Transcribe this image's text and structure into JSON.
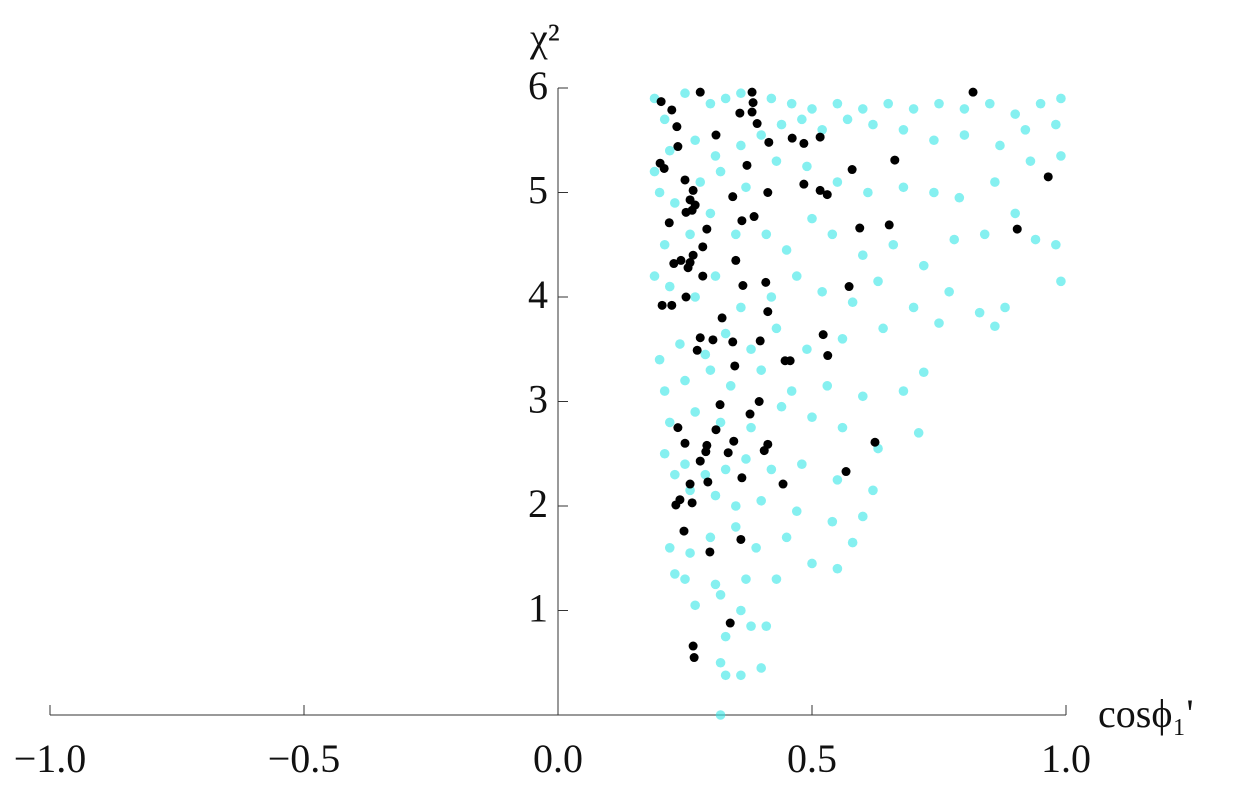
{
  "chart_data": {
    "type": "scatter",
    "x_label": "cosϕ₁'",
    "y_label": "χ²",
    "xlim": [
      -1,
      1
    ],
    "ylim": [
      0,
      6
    ],
    "xticks": [
      {
        "value": -1,
        "label": "−1.0"
      },
      {
        "value": -0.5,
        "label": "−0.5"
      },
      {
        "value": 0,
        "label": "0.0"
      },
      {
        "value": 0.5,
        "label": "0.5"
      },
      {
        "value": 1,
        "label": "1.0"
      }
    ],
    "yticks": [
      1,
      2,
      3,
      4,
      5,
      6
    ],
    "series": [
      {
        "color": "#33e6e6",
        "x": [
          0.19,
          0.21,
          0.25,
          0.3,
          0.33,
          0.36,
          0.42,
          0.46,
          0.5,
          0.55,
          0.6,
          0.65,
          0.7,
          0.75,
          0.8,
          0.85,
          0.9,
          0.95,
          0.99,
          0.98,
          0.92,
          0.87,
          0.8,
          0.74,
          0.68,
          0.62,
          0.57,
          0.52,
          0.48,
          0.44,
          0.4,
          0.36,
          0.31,
          0.27,
          0.22,
          0.19,
          0.2,
          0.23,
          0.28,
          0.32,
          0.37,
          0.43,
          0.49,
          0.55,
          0.61,
          0.68,
          0.74,
          0.79,
          0.86,
          0.93,
          0.99,
          0.98,
          0.94,
          0.9,
          0.84,
          0.78,
          0.72,
          0.66,
          0.6,
          0.54,
          0.5,
          0.45,
          0.41,
          0.35,
          0.3,
          0.26,
          0.21,
          0.19,
          0.22,
          0.27,
          0.31,
          0.36,
          0.42,
          0.47,
          0.52,
          0.58,
          0.63,
          0.7,
          0.77,
          0.83,
          0.88,
          0.99,
          0.86,
          0.75,
          0.64,
          0.56,
          0.49,
          0.43,
          0.38,
          0.33,
          0.29,
          0.24,
          0.2,
          0.21,
          0.25,
          0.3,
          0.34,
          0.4,
          0.46,
          0.53,
          0.6,
          0.68,
          0.72,
          0.71,
          0.63,
          0.56,
          0.5,
          0.44,
          0.38,
          0.32,
          0.27,
          0.22,
          0.21,
          0.25,
          0.29,
          0.33,
          0.37,
          0.42,
          0.48,
          0.55,
          0.62,
          0.6,
          0.54,
          0.47,
          0.4,
          0.35,
          0.31,
          0.26,
          0.23,
          0.22,
          0.26,
          0.3,
          0.35,
          0.39,
          0.45,
          0.5,
          0.55,
          0.58,
          0.43,
          0.37,
          0.31,
          0.25,
          0.23,
          0.27,
          0.32,
          0.36,
          0.41,
          0.38,
          0.33,
          0.32,
          0.33,
          0.36,
          0.4,
          0.32
        ],
        "values": [
          5.9,
          5.7,
          5.95,
          5.85,
          5.9,
          5.95,
          5.9,
          5.85,
          5.8,
          5.85,
          5.8,
          5.85,
          5.8,
          5.85,
          5.8,
          5.85,
          5.75,
          5.85,
          5.9,
          5.65,
          5.6,
          5.45,
          5.55,
          5.5,
          5.6,
          5.65,
          5.7,
          5.6,
          5.7,
          5.65,
          5.55,
          5.45,
          5.35,
          5.5,
          5.4,
          5.2,
          5.0,
          4.9,
          5.1,
          5.2,
          5.05,
          5.3,
          5.25,
          5.1,
          5.0,
          5.05,
          5.0,
          4.95,
          5.1,
          5.3,
          5.35,
          4.5,
          4.55,
          4.8,
          4.6,
          4.55,
          4.3,
          4.5,
          4.4,
          4.6,
          4.75,
          4.45,
          4.6,
          4.6,
          4.8,
          4.6,
          4.5,
          4.2,
          4.1,
          4.0,
          4.2,
          3.9,
          4.0,
          4.2,
          4.05,
          3.95,
          4.15,
          3.9,
          4.05,
          3.85,
          3.9,
          4.15,
          3.72,
          3.75,
          3.7,
          3.6,
          3.5,
          3.7,
          3.5,
          3.65,
          3.45,
          3.55,
          3.4,
          3.1,
          3.2,
          3.3,
          3.15,
          3.3,
          3.1,
          3.15,
          3.05,
          3.1,
          3.28,
          2.7,
          2.55,
          2.75,
          2.85,
          2.95,
          2.75,
          2.8,
          2.9,
          2.8,
          2.5,
          2.4,
          2.3,
          2.35,
          2.45,
          2.35,
          2.4,
          2.25,
          2.15,
          1.9,
          1.85,
          1.95,
          2.05,
          2.0,
          2.1,
          2.15,
          2.3,
          1.6,
          1.55,
          1.7,
          1.8,
          1.6,
          1.7,
          1.45,
          1.4,
          1.65,
          1.3,
          1.3,
          1.25,
          1.3,
          1.35,
          1.05,
          1.15,
          1.0,
          0.85,
          0.85,
          0.75,
          0.5,
          0.38,
          0.38,
          0.45,
          0.0
        ]
      },
      {
        "color": "#000000",
        "x": [
          0.203,
          0.224,
          0.28,
          0.382,
          0.384,
          0.358,
          0.382,
          0.392,
          0.234,
          0.311,
          0.236,
          0.415,
          0.461,
          0.484,
          0.516,
          0.663,
          0.579,
          0.817,
          0.965,
          0.201,
          0.209,
          0.25,
          0.266,
          0.26,
          0.27,
          0.264,
          0.252,
          0.344,
          0.372,
          0.413,
          0.386,
          0.362,
          0.484,
          0.516,
          0.53,
          0.594,
          0.652,
          0.904,
          0.219,
          0.293,
          0.266,
          0.26,
          0.228,
          0.242,
          0.256,
          0.285,
          0.285,
          0.35,
          0.364,
          0.409,
          0.413,
          0.573,
          0.205,
          0.224,
          0.252,
          0.323,
          0.28,
          0.305,
          0.274,
          0.344,
          0.398,
          0.447,
          0.457,
          0.522,
          0.531,
          0.348,
          0.319,
          0.396,
          0.378,
          0.236,
          0.25,
          0.311,
          0.293,
          0.28,
          0.291,
          0.413,
          0.406,
          0.346,
          0.335,
          0.362,
          0.443,
          0.567,
          0.624,
          0.232,
          0.24,
          0.26,
          0.264,
          0.295,
          0.248,
          0.299,
          0.36,
          0.339,
          0.266,
          0.268
        ],
        "values": [
          5.87,
          5.79,
          5.96,
          5.96,
          5.86,
          5.76,
          5.77,
          5.66,
          5.63,
          5.55,
          5.44,
          5.48,
          5.52,
          5.47,
          5.53,
          5.31,
          5.22,
          5.96,
          5.15,
          5.28,
          5.23,
          5.12,
          5.02,
          4.93,
          4.88,
          4.83,
          4.81,
          4.96,
          5.26,
          5.0,
          4.77,
          4.73,
          5.08,
          5.02,
          4.98,
          4.66,
          4.69,
          4.65,
          4.71,
          4.65,
          4.4,
          4.33,
          4.32,
          4.35,
          4.28,
          4.48,
          4.2,
          4.35,
          4.11,
          4.14,
          3.86,
          4.1,
          3.92,
          3.92,
          4.0,
          3.8,
          3.61,
          3.59,
          3.49,
          3.57,
          3.58,
          3.39,
          3.39,
          3.64,
          3.44,
          3.34,
          2.97,
          3.0,
          2.88,
          2.75,
          2.6,
          2.73,
          2.58,
          2.43,
          2.52,
          2.59,
          2.53,
          2.62,
          2.51,
          2.27,
          2.21,
          2.33,
          2.61,
          2.01,
          2.06,
          2.21,
          2.03,
          2.23,
          1.76,
          1.56,
          1.68,
          0.88,
          0.66,
          0.55
        ]
      }
    ]
  }
}
